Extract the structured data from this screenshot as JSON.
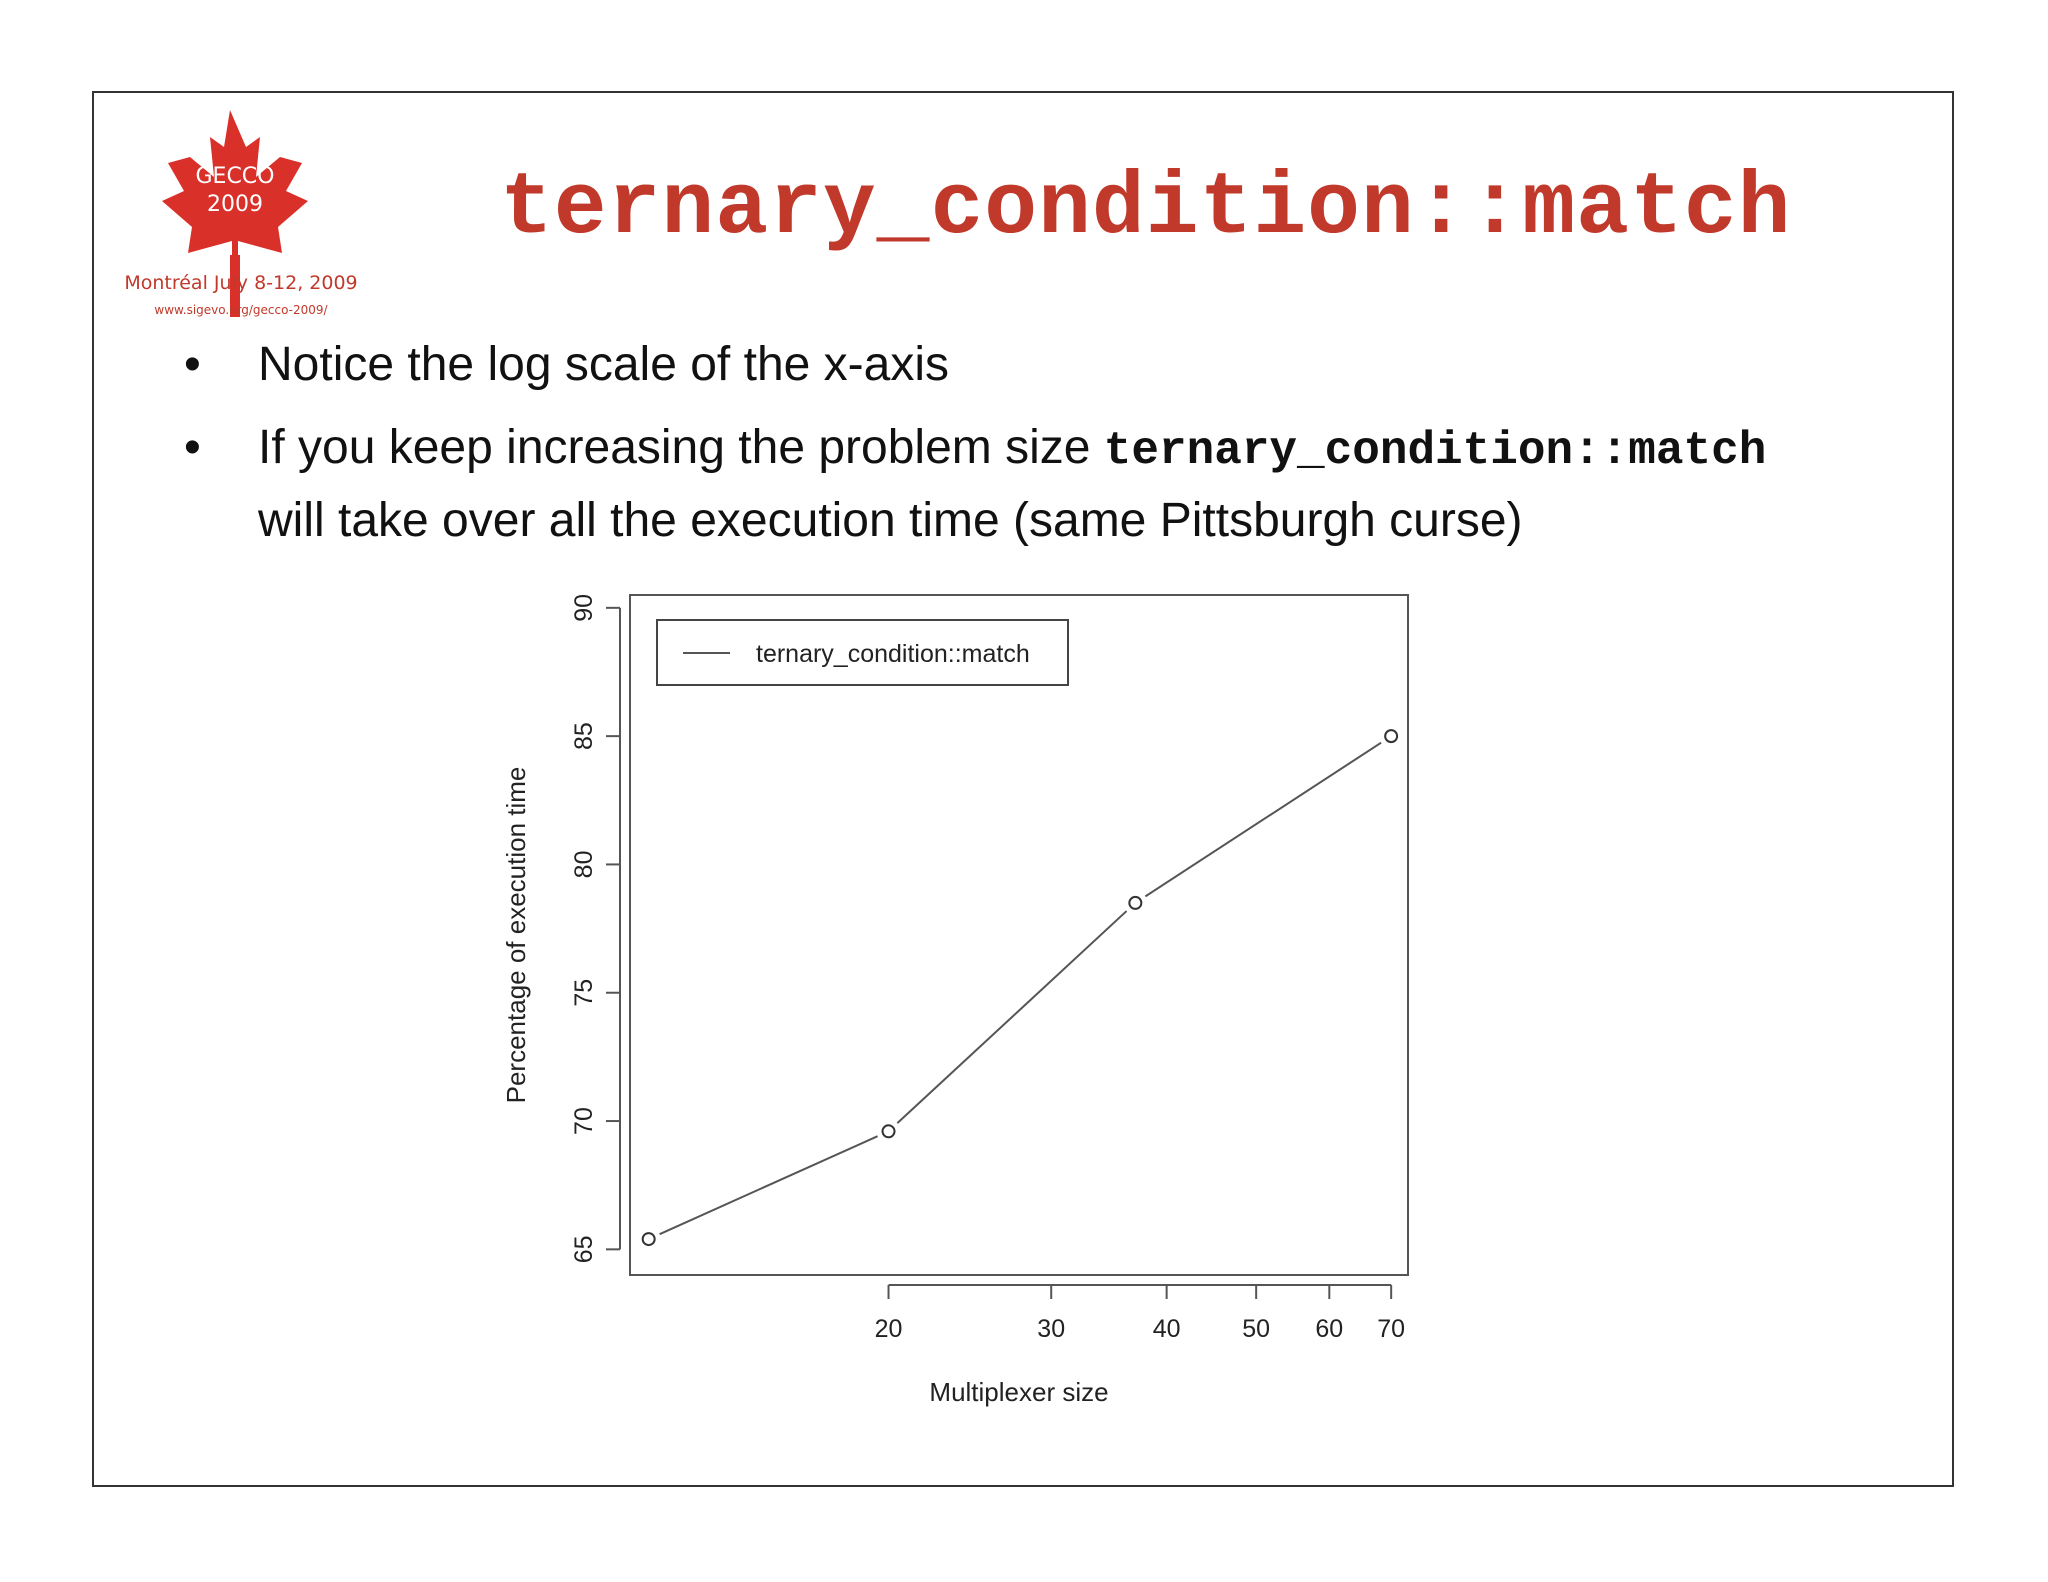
{
  "logo": {
    "text_line1": "GECCO",
    "text_line2": "2009",
    "place": "Montréal July 8-12, 2009",
    "url": "www.sigevo.org/gecco-2009/",
    "accent_color": "#d9302a",
    "icon": "maple-leaf-icon"
  },
  "slide": {
    "title": "ternary_condition::match",
    "title_color": "#c0392b",
    "bullets": [
      {
        "text": "Notice the log scale of the x-axis"
      },
      {
        "prefix": "If you keep increasing the problem size ",
        "code": "ternary_condition::match",
        "suffix": "will take over all the execution time (same Pittsburgh curse)"
      }
    ],
    "bullet_symbol": "•"
  },
  "chart_data": {
    "type": "line",
    "x_scale": "log",
    "x": [
      11,
      20,
      37,
      70
    ],
    "series": [
      {
        "name": "ternary_condition::match",
        "values": [
          65.4,
          69.6,
          78.5,
          85.0
        ],
        "marker": "open-circle"
      }
    ],
    "xlabel": "Multiplexer size",
    "ylabel": "Percentage of execution time",
    "xticks": [
      20,
      30,
      40,
      50,
      60,
      70
    ],
    "yticks": [
      65,
      70,
      75,
      80,
      85,
      90
    ],
    "xlim": [
      10.5,
      73
    ],
    "ylim": [
      64,
      90.5
    ],
    "legend_position": "top-left",
    "grid": false,
    "line_color": "#555555"
  }
}
